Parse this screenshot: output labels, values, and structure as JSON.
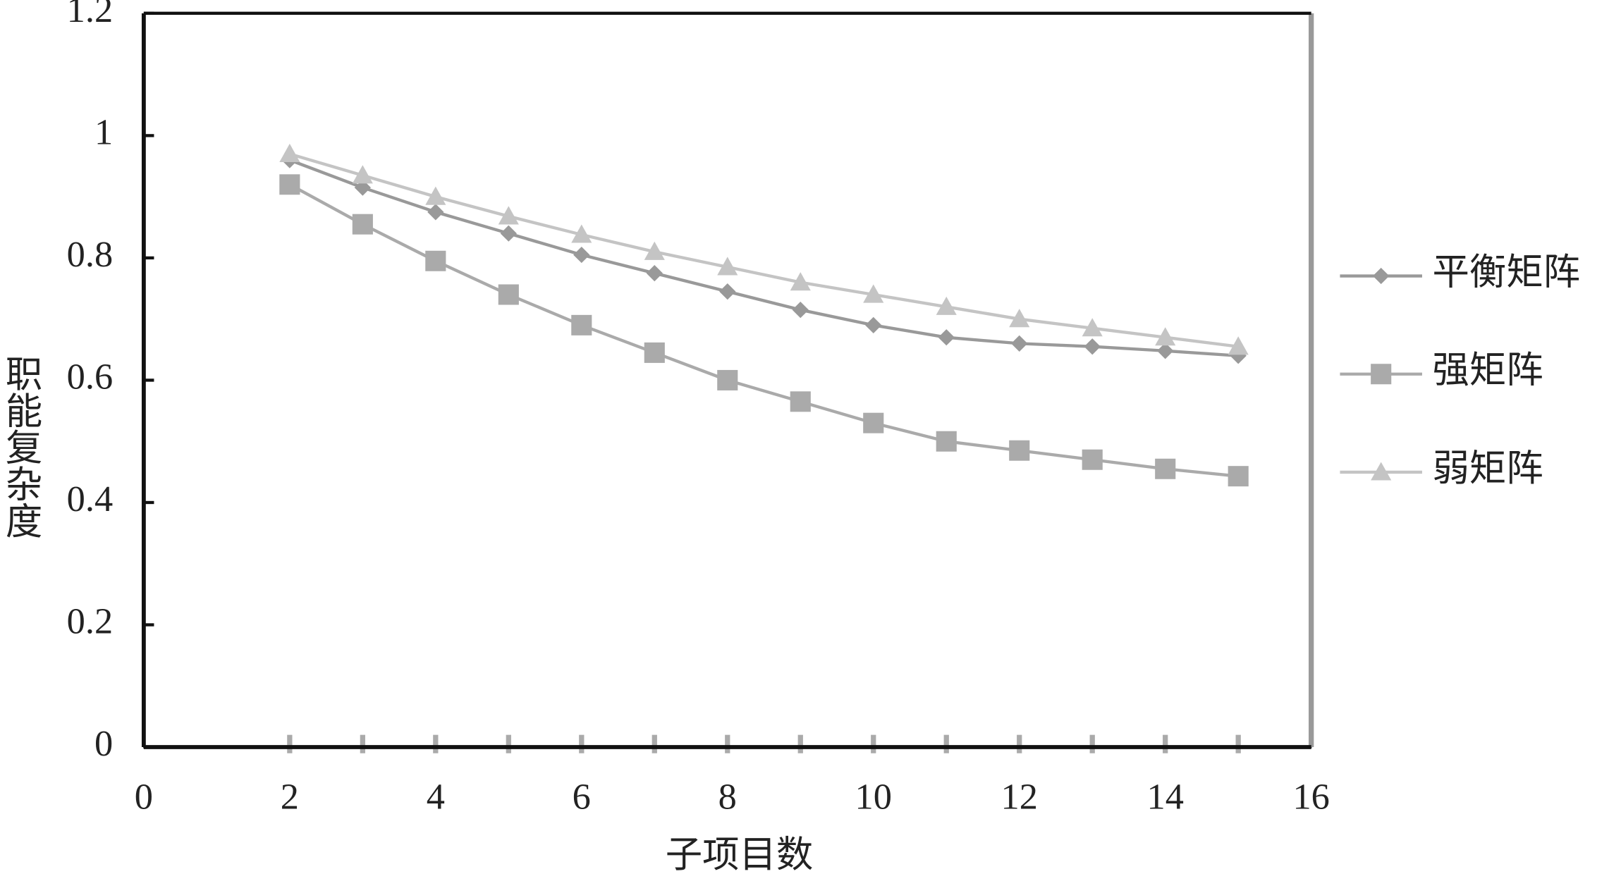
{
  "chart_data": {
    "type": "line",
    "x_label": "子项目数",
    "y_label": "职能复杂度",
    "x": [
      2,
      3,
      4,
      5,
      6,
      7,
      8,
      9,
      10,
      11,
      12,
      13,
      14,
      15
    ],
    "series": [
      {
        "name": "平衡矩阵",
        "color": "#999999",
        "marker": "diamond",
        "values": [
          0.96,
          0.915,
          0.875,
          0.84,
          0.805,
          0.775,
          0.745,
          0.715,
          0.69,
          0.67,
          0.66,
          0.655,
          0.648,
          0.64
        ]
      },
      {
        "name": "强矩阵",
        "color": "#aaaaaa",
        "marker": "square",
        "values": [
          0.92,
          0.855,
          0.795,
          0.74,
          0.69,
          0.645,
          0.6,
          0.565,
          0.53,
          0.5,
          0.485,
          0.47,
          0.455,
          0.443
        ]
      },
      {
        "name": "弱矩阵",
        "color": "#c4c4c4",
        "marker": "triangle",
        "values": [
          0.97,
          0.935,
          0.9,
          0.868,
          0.838,
          0.81,
          0.785,
          0.76,
          0.74,
          0.72,
          0.7,
          0.685,
          0.67,
          0.655
        ]
      }
    ],
    "xlim": [
      0,
      16
    ],
    "xticks": [
      0,
      2,
      4,
      6,
      8,
      10,
      12,
      14,
      16
    ],
    "ylim": [
      0,
      1.2
    ],
    "yticks": [
      0,
      0.2,
      0.4,
      0.6,
      0.8,
      1,
      1.2
    ],
    "legend": "right"
  }
}
